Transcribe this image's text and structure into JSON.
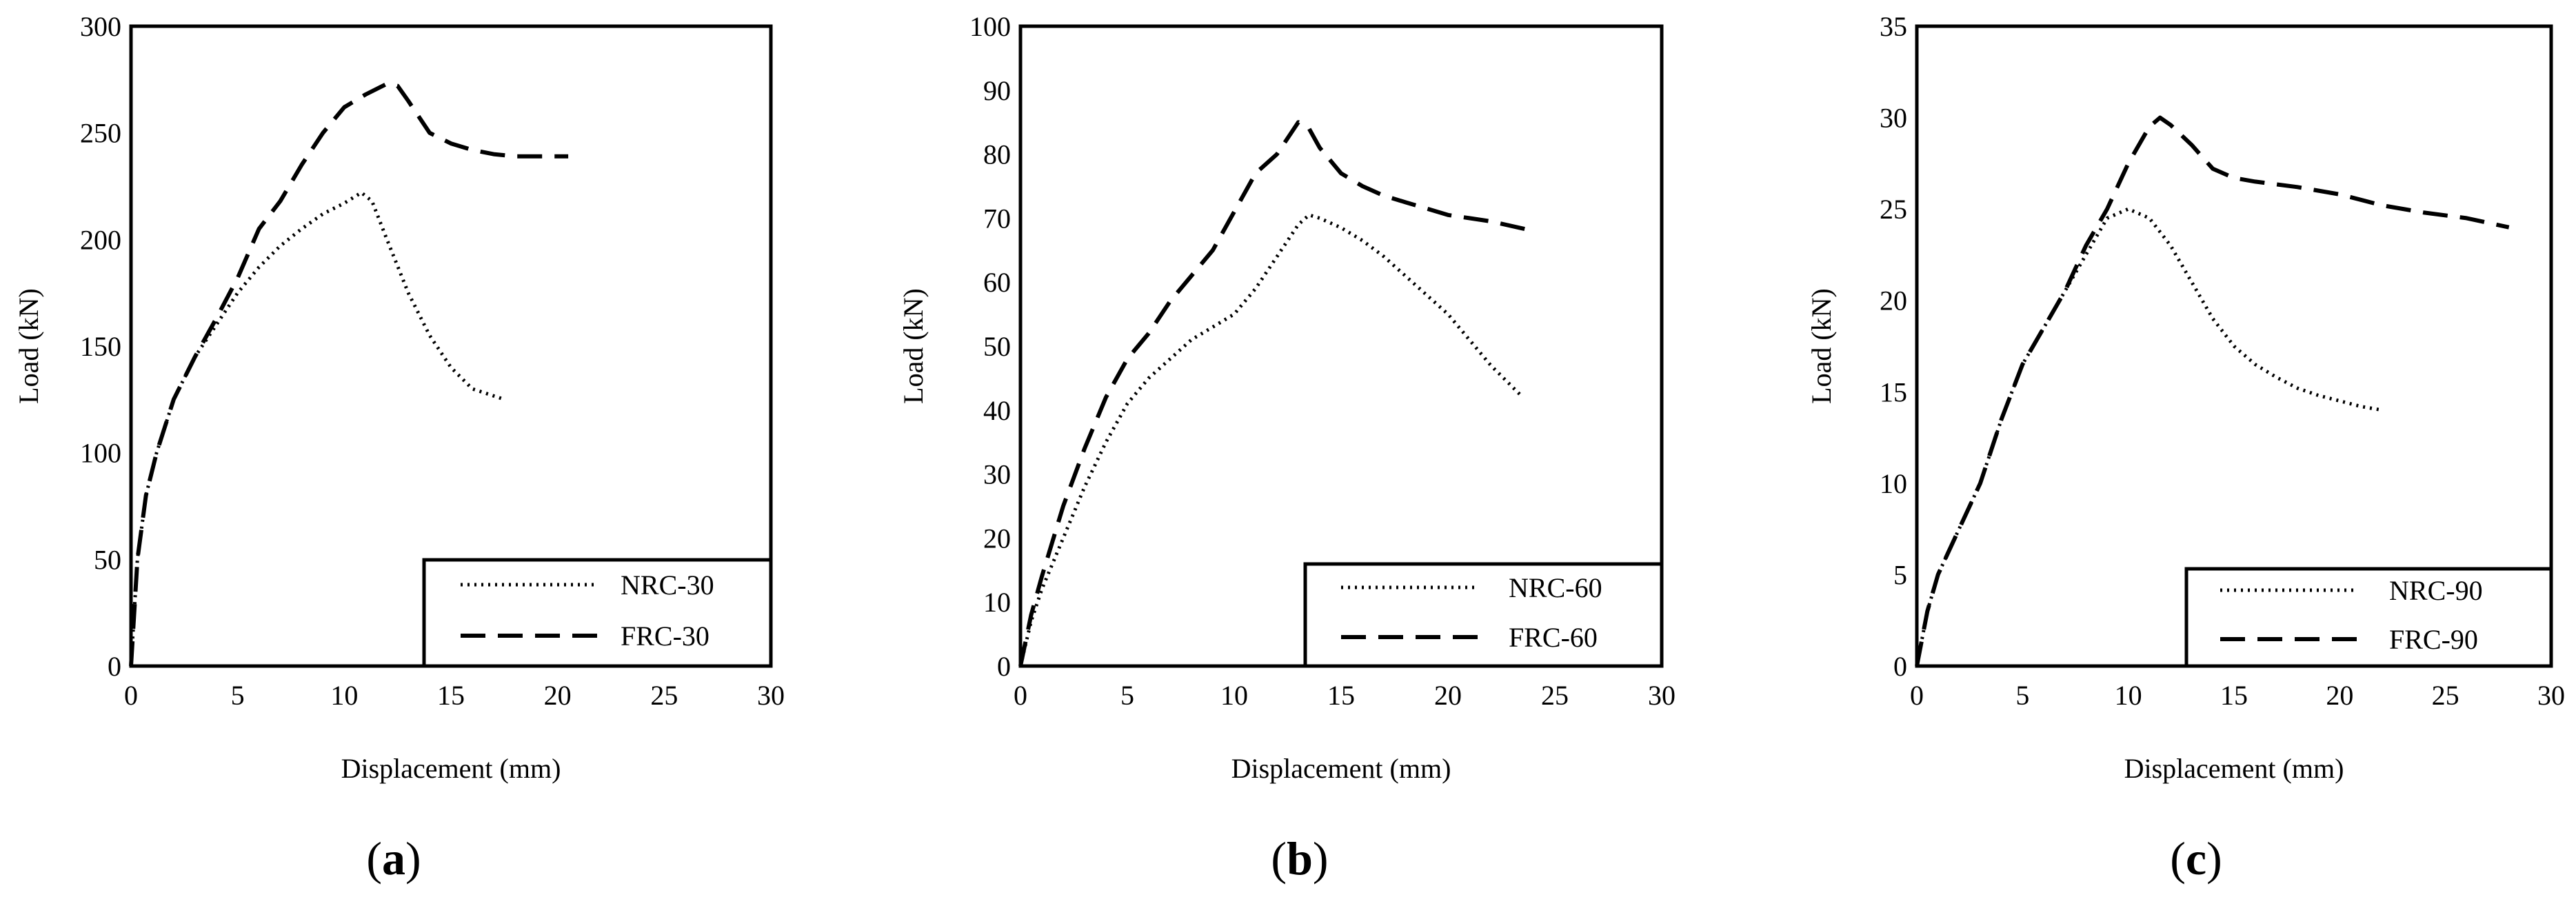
{
  "chart_data": [
    {
      "type": "line",
      "panel_label": "(a)",
      "panel_letter": "a",
      "xlabel": "Displacement (mm)",
      "ylabel": "Load (kN)",
      "xlim": [
        0,
        30
      ],
      "ylim": [
        0,
        300
      ],
      "xticks": [
        "0",
        "5",
        "10",
        "15",
        "20",
        "25",
        "30"
      ],
      "yticks": [
        "0",
        "50",
        "100",
        "150",
        "200",
        "250",
        "300"
      ],
      "legend_position": "bottom-right",
      "series": [
        {
          "name": "NRC-30",
          "style": "dotted",
          "x": [
            0,
            0.3,
            0.7,
            1.2,
            2,
            3,
            4,
            5,
            6,
            7,
            8,
            9,
            10,
            10.8,
            11.3,
            12,
            13,
            14,
            15,
            16,
            17.5
          ],
          "y": [
            0,
            50,
            80,
            100,
            125,
            145,
            160,
            175,
            187,
            197,
            205,
            212,
            217,
            222,
            218,
            200,
            175,
            155,
            140,
            130,
            125
          ]
        },
        {
          "name": "FRC-30",
          "style": "dashed",
          "x": [
            0,
            0.3,
            0.7,
            1.2,
            2,
            3,
            4,
            5,
            6,
            7,
            8,
            9,
            10,
            11,
            12,
            12.5,
            13,
            14,
            15,
            16,
            17,
            18,
            19,
            20.5
          ],
          "y": [
            0,
            50,
            80,
            100,
            125,
            145,
            163,
            182,
            205,
            218,
            235,
            250,
            262,
            268,
            273,
            272,
            265,
            250,
            245,
            242,
            240,
            239,
            239,
            239
          ]
        }
      ]
    },
    {
      "type": "line",
      "panel_label": "(b)",
      "panel_letter": "b",
      "xlabel": "Displacement (mm)",
      "ylabel": "Load (kN)",
      "xlim": [
        0,
        30
      ],
      "ylim": [
        0,
        100
      ],
      "xticks": [
        "0",
        "5",
        "10",
        "15",
        "20",
        "25",
        "30"
      ],
      "yticks": [
        "0",
        "10",
        "20",
        "30",
        "40",
        "50",
        "60",
        "70",
        "80",
        "90",
        "100"
      ],
      "legend_position": "bottom-right",
      "series": [
        {
          "name": "NRC-60",
          "style": "dotted",
          "x": [
            0,
            0.5,
            1,
            2,
            3,
            4,
            5,
            6,
            7,
            8,
            9,
            10,
            11,
            12,
            13,
            13.5,
            14,
            15,
            16,
            17,
            18,
            19,
            20,
            21,
            22,
            23.5
          ],
          "y": [
            0,
            7,
            12,
            20,
            28,
            35,
            41,
            45,
            48,
            51,
            53,
            55,
            59,
            64,
            69,
            70.5,
            70,
            68.5,
            66.5,
            64,
            61,
            58,
            55,
            51,
            47,
            42
          ]
        },
        {
          "name": "FRC-60",
          "style": "dashed",
          "x": [
            0,
            0.5,
            1,
            2,
            3,
            4,
            5,
            6,
            7,
            8,
            9,
            10,
            11,
            12,
            13,
            13.5,
            14,
            15,
            16,
            17,
            18,
            19,
            20,
            21,
            22,
            24
          ],
          "y": [
            0,
            8,
            14,
            25,
            34,
            42,
            48,
            52,
            57,
            61,
            65,
            71,
            77,
            80,
            85,
            84,
            81,
            77,
            75,
            73.5,
            72.5,
            71.5,
            70.5,
            70,
            69.5,
            68
          ]
        }
      ]
    },
    {
      "type": "line",
      "panel_label": "(c)",
      "panel_letter": "c",
      "xlabel": "Displacement (mm)",
      "ylabel": "Load (kN)",
      "xlim": [
        0,
        30
      ],
      "ylim": [
        0,
        35
      ],
      "xticks": [
        "0",
        "5",
        "10",
        "15",
        "20",
        "25",
        "30"
      ],
      "yticks": [
        "0",
        "5",
        "10",
        "15",
        "20",
        "25",
        "30",
        "35"
      ],
      "legend_position": "bottom-right",
      "series": [
        {
          "name": "NRC-90",
          "style": "dotted",
          "x": [
            0,
            0.5,
            1,
            2,
            3,
            4,
            5,
            6,
            7,
            8,
            9,
            10,
            11,
            12,
            13,
            14,
            15,
            16,
            17,
            18,
            19,
            20,
            21,
            22
          ],
          "y": [
            0,
            3,
            5,
            7.5,
            10,
            13.5,
            16.5,
            18.5,
            20.5,
            22.5,
            24.5,
            25,
            24.5,
            23,
            21,
            19,
            17.5,
            16.5,
            15.8,
            15.2,
            14.8,
            14.5,
            14.2,
            14
          ]
        },
        {
          "name": "FRC-90",
          "style": "dashed",
          "x": [
            0,
            0.5,
            1,
            2,
            3,
            4,
            5,
            6,
            7,
            8,
            9,
            10,
            11,
            11.5,
            12,
            13,
            14,
            15,
            16,
            18,
            20,
            22,
            24,
            26,
            28
          ],
          "y": [
            0,
            3,
            5,
            7.5,
            10,
            13.5,
            16.5,
            18.5,
            20.5,
            23,
            25,
            27.5,
            29.5,
            30,
            29.6,
            28.5,
            27.2,
            26.7,
            26.5,
            26.2,
            25.8,
            25.2,
            24.8,
            24.5,
            24
          ]
        }
      ]
    }
  ]
}
